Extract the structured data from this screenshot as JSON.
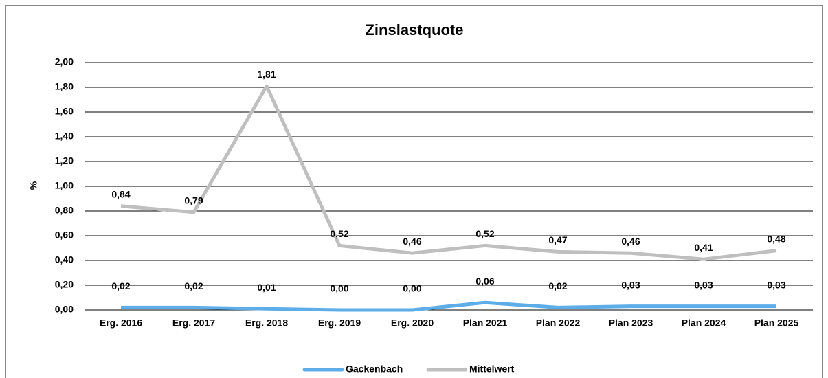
{
  "chart_data": {
    "type": "line",
    "title": "Zinslastquote",
    "y_label": "%",
    "categories": [
      "Erg. 2016",
      "Erg. 2017",
      "Erg. 2018",
      "Erg. 2019",
      "Erg. 2020",
      "Plan 2021",
      "Plan 2022",
      "Plan 2023",
      "Plan 2024",
      "Plan 2025"
    ],
    "series": [
      {
        "name": "Gackenbach",
        "color": "#5dade9",
        "values": [
          0.02,
          0.02,
          0.01,
          0.0,
          0.0,
          0.06,
          0.02,
          0.03,
          0.03,
          0.03
        ],
        "value_labels": [
          "0,02",
          "0,02",
          "0,01",
          "0,00",
          "0,00",
          "0,06",
          "0,02",
          "0,03",
          "0,03",
          "0,03"
        ]
      },
      {
        "name": "Mittelwert",
        "color": "#bfbfbf",
        "values": [
          0.84,
          0.79,
          1.81,
          0.52,
          0.46,
          0.52,
          0.47,
          0.46,
          0.41,
          0.48
        ],
        "value_labels": [
          "0,84",
          "0,79",
          "1,81",
          "0,52",
          "0,46",
          "0,52",
          "0,47",
          "0,46",
          "0,41",
          "0,48"
        ]
      }
    ],
    "ylim": [
      0,
      2
    ],
    "yticks": [
      {
        "value": 0,
        "label": "0,00"
      },
      {
        "value": 0.2,
        "label": "0,20"
      },
      {
        "value": 0.4,
        "label": "0,40"
      },
      {
        "value": 0.6,
        "label": "0,60"
      },
      {
        "value": 0.8,
        "label": "0,80"
      },
      {
        "value": 1,
        "label": "1,00"
      },
      {
        "value": 1.2,
        "label": "1,20"
      },
      {
        "value": 1.4,
        "label": "1,40"
      },
      {
        "value": 1.6,
        "label": "1,60"
      },
      {
        "value": 1.8,
        "label": "1,80"
      },
      {
        "value": 2,
        "label": "2,00"
      }
    ],
    "grid": true,
    "legend": "bottom"
  }
}
